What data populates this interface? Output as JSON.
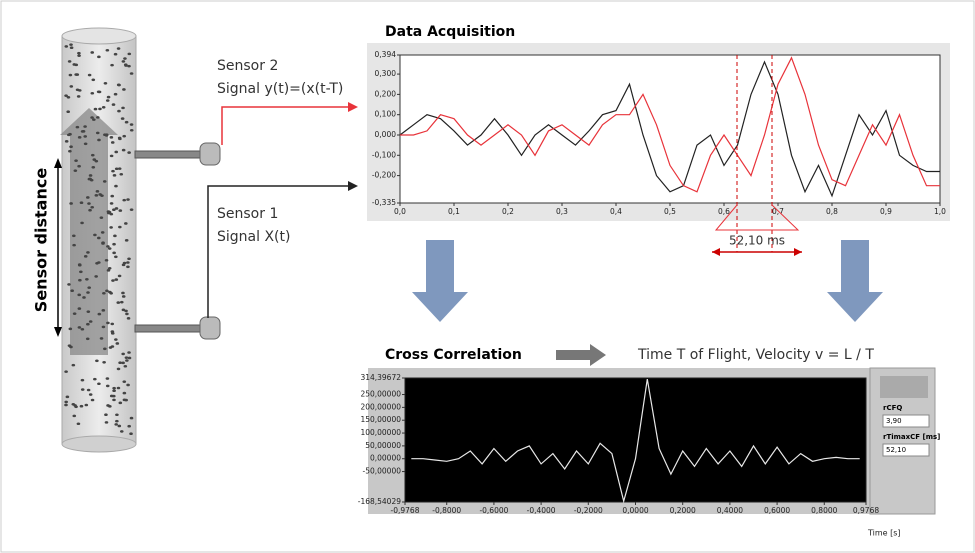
{
  "labels": {
    "sensor2": "Sensor 2",
    "signal2": "Signal y(t)=(x(t-T)",
    "sensor1": "Sensor 1",
    "signal1": "Signal X(t)",
    "distance": "Sensor distance",
    "velocity": "Time T of Flight, Velocity v = L / T"
  },
  "panel": {
    "q_label": "rCFQ",
    "q_value": "3,90",
    "t_label": "rTimaxCF [ms]",
    "t_value": "52,10"
  },
  "chart_data": [
    {
      "type": "line",
      "title": "Data Acquisition",
      "annotation": "52,10 ms",
      "x": [
        0,
        0.025,
        0.05,
        0.075,
        0.1,
        0.125,
        0.15,
        0.175,
        0.2,
        0.225,
        0.25,
        0.275,
        0.3,
        0.325,
        0.35,
        0.375,
        0.4,
        0.425,
        0.45,
        0.475,
        0.5,
        0.525,
        0.55,
        0.575,
        0.6,
        0.625,
        0.65,
        0.675,
        0.7,
        0.725,
        0.75,
        0.775,
        0.8,
        0.825,
        0.85,
        0.875,
        0.9,
        0.925,
        0.95,
        0.975,
        1.0
      ],
      "series": [
        {
          "color": "#222222",
          "values": [
            0,
            0.05,
            0.1,
            0.08,
            0.02,
            -0.05,
            0.0,
            0.08,
            0.0,
            -0.1,
            0.0,
            0.05,
            0.0,
            -0.05,
            0.02,
            0.1,
            0.12,
            0.25,
            0.0,
            -0.2,
            -0.28,
            -0.25,
            -0.05,
            0.0,
            -0.15,
            -0.05,
            0.2,
            0.36,
            0.2,
            -0.1,
            -0.28,
            -0.15,
            -0.3,
            -0.1,
            0.1,
            0.0,
            0.12,
            -0.1,
            -0.15,
            -0.18,
            -0.18
          ]
        },
        {
          "color": "#e8333a",
          "values": [
            0,
            0.0,
            0.02,
            0.1,
            0.08,
            0.0,
            -0.05,
            0.0,
            0.05,
            0.0,
            -0.1,
            0.02,
            0.05,
            0.0,
            -0.05,
            0.05,
            0.1,
            0.1,
            0.2,
            0.05,
            -0.15,
            -0.25,
            -0.28,
            -0.1,
            0.0,
            -0.1,
            -0.2,
            0.0,
            0.25,
            0.38,
            0.2,
            -0.05,
            -0.22,
            -0.25,
            -0.1,
            0.05,
            -0.05,
            0.1,
            -0.1,
            -0.25,
            -0.25
          ]
        }
      ],
      "xlim": [
        0,
        1
      ],
      "ylim": [
        -0.335,
        0.394
      ],
      "xticks": [
        {
          "value": 0,
          "label": "0,0"
        },
        {
          "value": 0.1,
          "label": "0,1"
        },
        {
          "value": 0.2,
          "label": "0,2"
        },
        {
          "value": 0.3,
          "label": "0,3"
        },
        {
          "value": 0.4,
          "label": "0,4"
        },
        {
          "value": 0.5,
          "label": "0,5"
        },
        {
          "value": 0.6,
          "label": "0,6"
        },
        {
          "value": 0.7,
          "label": "0,7"
        },
        {
          "value": 0.8,
          "label": "0,8"
        },
        {
          "value": 0.9,
          "label": "0,9"
        },
        {
          "value": 1,
          "label": "1,0"
        }
      ],
      "yticks": [
        {
          "value": 0.394,
          "label": "0,394"
        },
        {
          "value": 0.3,
          "label": "0,300"
        },
        {
          "value": 0.2,
          "label": "0,200"
        },
        {
          "value": 0.1,
          "label": "0,100"
        },
        {
          "value": 0,
          "label": "0,000"
        },
        {
          "value": -0.1,
          "label": "-0,100"
        },
        {
          "value": -0.2,
          "label": "-0,200"
        },
        {
          "value": -0.335,
          "label": "-0,335"
        }
      ],
      "background": "#ffffff",
      "axis_color": "#333333"
    },
    {
      "type": "line",
      "title": "Cross Correlation",
      "xlabel": "Time [s]",
      "x": [
        -0.95,
        -0.9,
        -0.85,
        -0.8,
        -0.75,
        -0.7,
        -0.65,
        -0.6,
        -0.55,
        -0.5,
        -0.45,
        -0.4,
        -0.35,
        -0.3,
        -0.25,
        -0.2,
        -0.15,
        -0.1,
        -0.05,
        0,
        0.05,
        0.1,
        0.15,
        0.2,
        0.25,
        0.3,
        0.35,
        0.4,
        0.45,
        0.5,
        0.55,
        0.6,
        0.65,
        0.7,
        0.75,
        0.8,
        0.85,
        0.9,
        0.95
      ],
      "series": [
        {
          "color": "#e8e8e8",
          "values": [
            0,
            0,
            -5,
            -10,
            0,
            30,
            -20,
            40,
            -10,
            30,
            50,
            -20,
            20,
            -40,
            30,
            -20,
            60,
            20,
            -165,
            0,
            310,
            40,
            -60,
            30,
            -30,
            40,
            -20,
            30,
            -30,
            50,
            -20,
            45,
            -20,
            20,
            -10,
            0,
            5,
            0,
            0
          ]
        }
      ],
      "xlim": [
        -0.9768,
        0.9768
      ],
      "ylim": [
        -168.54029,
        314.39672
      ],
      "xticks": [
        {
          "value": -0.9768,
          "label": "-0,9768"
        },
        {
          "value": -0.8,
          "label": "-0,8000"
        },
        {
          "value": -0.6,
          "label": "-0,6000"
        },
        {
          "value": -0.4,
          "label": "-0,4000"
        },
        {
          "value": -0.2,
          "label": "-0,2000"
        },
        {
          "value": 0,
          "label": "0,0000"
        },
        {
          "value": 0.2,
          "label": "0,2000"
        },
        {
          "value": 0.4,
          "label": "0,4000"
        },
        {
          "value": 0.6,
          "label": "0,6000"
        },
        {
          "value": 0.8,
          "label": "0,8000"
        },
        {
          "value": 0.9768,
          "label": "0,9768"
        }
      ],
      "yticks": [
        {
          "value": 314.39672,
          "label": "314,39672"
        },
        {
          "value": 250,
          "label": "250,00000"
        },
        {
          "value": 200,
          "label": "200,00000"
        },
        {
          "value": 150,
          "label": "150,00000"
        },
        {
          "value": 100,
          "label": "100,00000"
        },
        {
          "value": 50,
          "label": "50,00000"
        },
        {
          "value": 0,
          "label": "0,00000"
        },
        {
          "value": -50,
          "label": "-50,00000"
        },
        {
          "value": -168.54029,
          "label": "-168,54029"
        }
      ],
      "background": "#000000",
      "axis_color": "#222222"
    }
  ]
}
